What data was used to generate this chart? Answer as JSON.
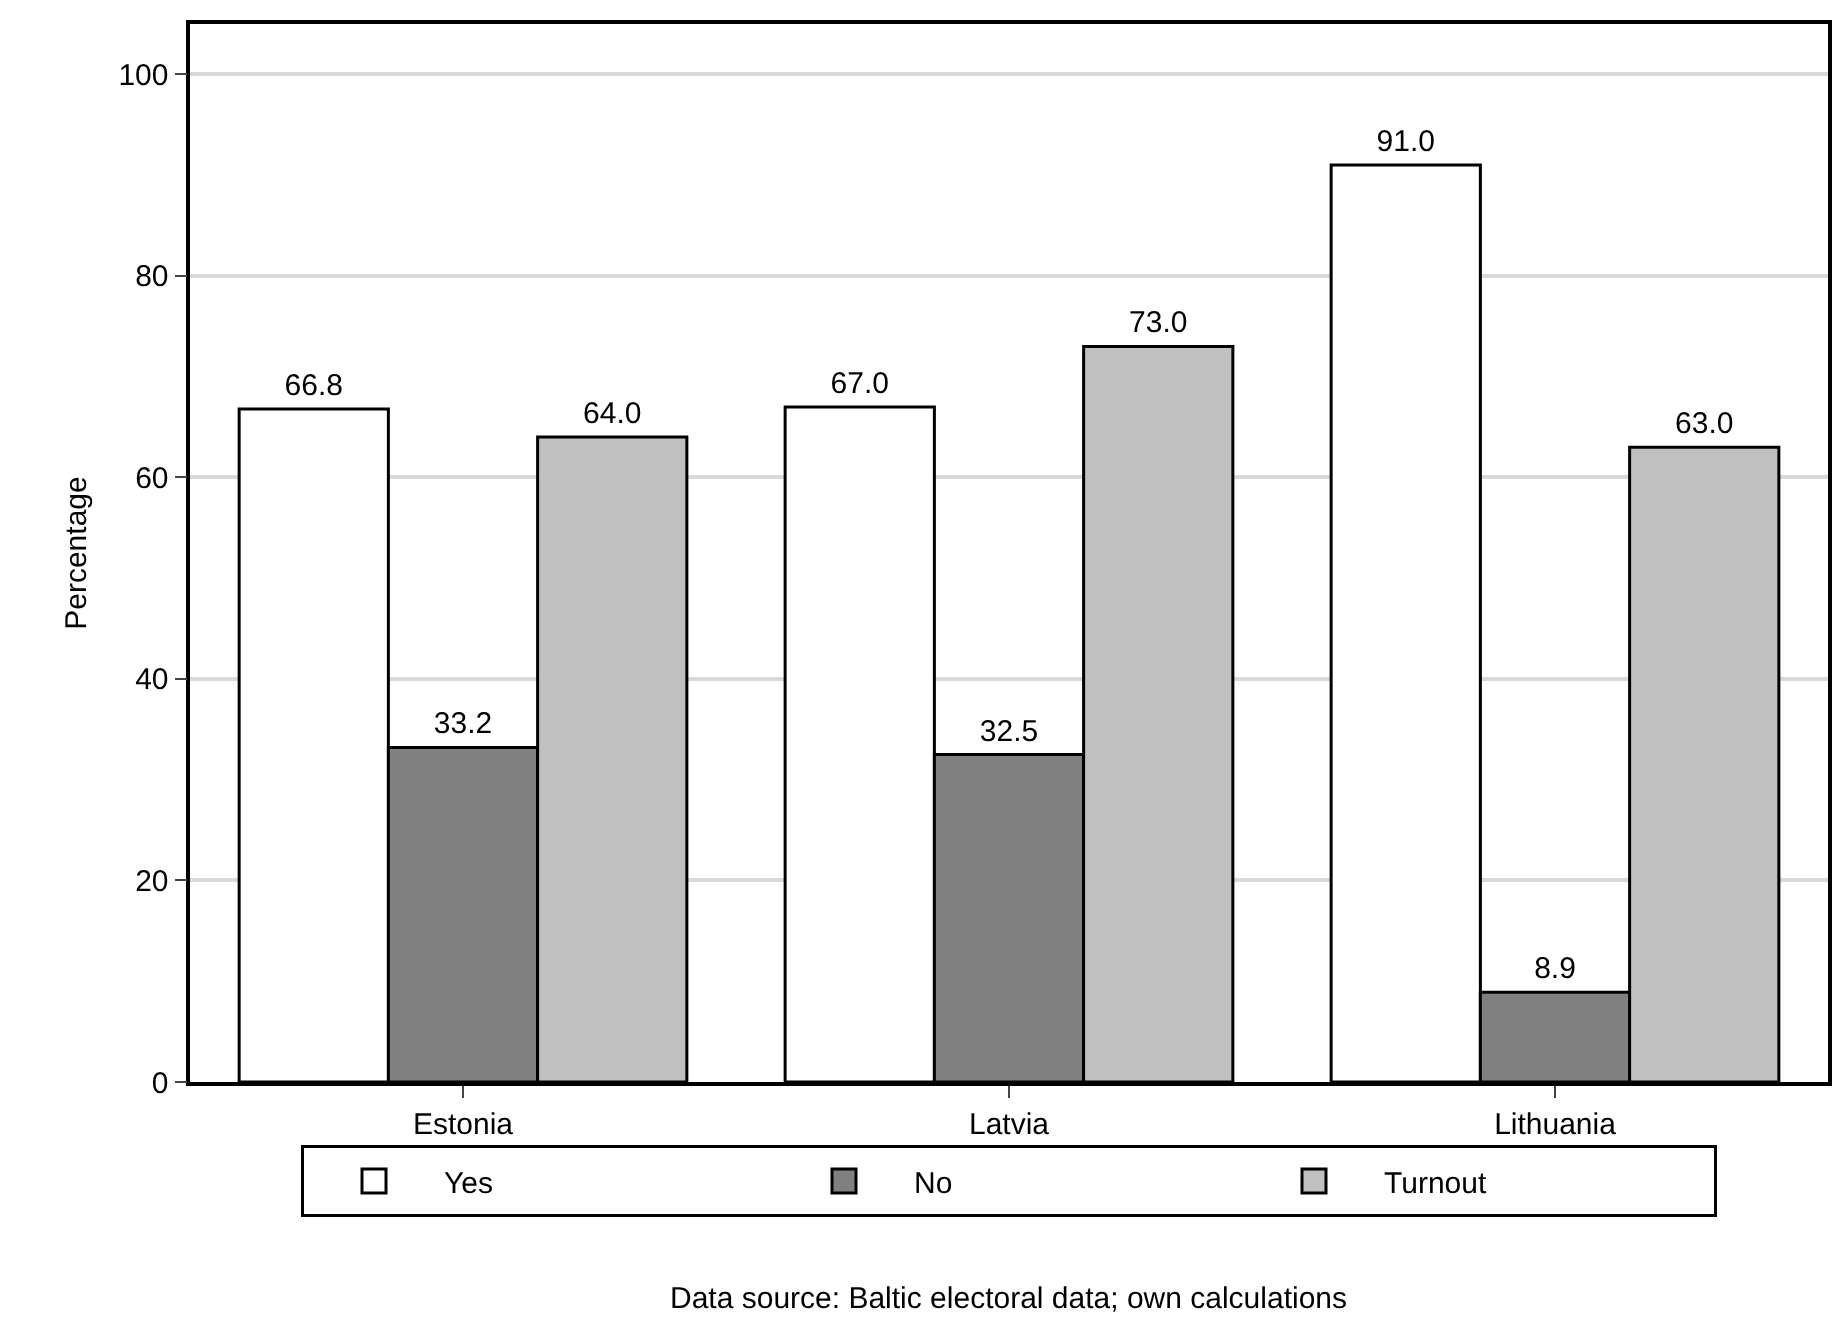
{
  "chart_data": {
    "type": "bar",
    "ylabel": "Percentage",
    "categories": [
      "Estonia",
      "Latvia",
      "Lithuania"
    ],
    "series": [
      {
        "name": "Yes",
        "color": "#ffffff",
        "values": [
          66.8,
          67.0,
          91.0
        ],
        "value_labels": [
          "66.8",
          "67.0",
          "91.0"
        ]
      },
      {
        "name": "No",
        "color": "#808080",
        "values": [
          33.2,
          32.5,
          8.9
        ],
        "value_labels": [
          "33.2",
          "32.5",
          "8.9"
        ]
      },
      {
        "name": "Turnout",
        "color": "#c0c0c0",
        "values": [
          64.0,
          73.0,
          63.0
        ],
        "value_labels": [
          "64.0",
          "73.0",
          "63.0"
        ]
      }
    ],
    "ylim": [
      0,
      105
    ],
    "yticks": [
      0,
      20,
      40,
      60,
      80,
      100
    ],
    "grid": "y",
    "legend": "bottom",
    "annotations": [
      "Data source: Baltic electoral data; own calculations"
    ]
  }
}
